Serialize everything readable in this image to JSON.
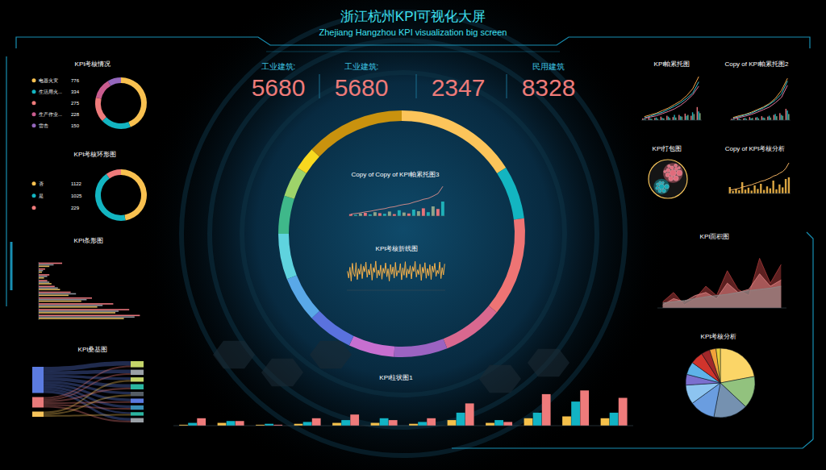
{
  "header": {
    "title": "浙江杭州KPI可视化大屏",
    "subtitle": "Zhejiang Hangzhou KPI visualization big screen"
  },
  "kpis": [
    {
      "label": "工业建筑:",
      "value": 5680
    },
    {
      "label": "工业建筑:",
      "value": 5680
    },
    {
      "value": 2347
    },
    {
      "label": "民用建筑",
      "value": 8328
    }
  ],
  "chart_data": [
    {
      "type": "donut",
      "title": "KPI考核情况",
      "categories": [
        "电器火灾",
        "生活用火...",
        null,
        "生产作业...",
        "雷击"
      ],
      "values": [
        776,
        334,
        275,
        228,
        150
      ],
      "colors": [
        "#f9c150",
        "#13b5c1",
        "#ef7b7b",
        "#c95c8f",
        "#9467bd"
      ],
      "legend": "left"
    },
    {
      "type": "donut",
      "title": "KPI考核环形图",
      "categories": [
        "否",
        "是",
        null
      ],
      "values": [
        1122,
        1025,
        229
      ],
      "colors": [
        "#f9c150",
        "#13b5c1",
        "#ef7b7b"
      ],
      "legend": "left"
    },
    {
      "type": "bar",
      "title": "KPI条形图",
      "orientation": "horizontal",
      "xlim": [
        0,
        100
      ],
      "tick_labels": false,
      "series": [
        {
          "color": "#e5737a",
          "values": [
            22,
            6,
            10,
            8,
            15,
            30,
            50,
            70,
            85,
            95
          ]
        },
        {
          "color": "#8a9099",
          "values": [
            14,
            4,
            8,
            10,
            18,
            35,
            45,
            60,
            75,
            90
          ]
        },
        {
          "color": "#d9b25a",
          "values": [
            10,
            3,
            5,
            12,
            20,
            28,
            40,
            55,
            72,
            80
          ]
        }
      ]
    },
    {
      "type": "sankey",
      "title": "KPI桑基图",
      "colors": [
        "#5b7be0",
        "#e87a7a",
        "#f5c35a",
        "#c5d56a",
        "#9aa0a6",
        "#c5d56a",
        "#2bb5a0",
        "#555d66",
        "#5b7be0",
        "#3a8fb7",
        "#2bb5a0",
        "#9aa0a6"
      ],
      "links": [
        {
          "source": 0,
          "target": 3,
          "value": 5
        },
        {
          "source": 0,
          "target": 4,
          "value": 4
        },
        {
          "source": 0,
          "target": 5,
          "value": 3
        },
        {
          "source": 0,
          "target": 6,
          "value": 4
        },
        {
          "source": 0,
          "target": 7,
          "value": 3
        },
        {
          "source": 0,
          "target": 8,
          "value": 3
        },
        {
          "source": 0,
          "target": 9,
          "value": 3
        },
        {
          "source": 0,
          "target": 10,
          "value": 2
        },
        {
          "source": 0,
          "target": 11,
          "value": 3
        },
        {
          "source": 1,
          "target": 3,
          "value": 2
        },
        {
          "source": 1,
          "target": 4,
          "value": 2
        },
        {
          "source": 1,
          "target": 6,
          "value": 2
        },
        {
          "source": 1,
          "target": 8,
          "value": 2
        },
        {
          "source": 1,
          "target": 9,
          "value": 2
        },
        {
          "source": 1,
          "target": 11,
          "value": 2
        },
        {
          "source": 2,
          "target": 5,
          "value": 2
        },
        {
          "source": 2,
          "target": 7,
          "value": 2
        },
        {
          "source": 2,
          "target": 10,
          "value": 2
        }
      ]
    },
    {
      "type": "donut",
      "values": [
        16,
        7,
        13,
        8,
        7,
        6,
        6,
        6,
        6,
        5,
        4,
        3,
        13
      ],
      "colors": [
        "#fcc45a",
        "#13b5c1",
        "#ee7474",
        "#d9688f",
        "#9b63c2",
        "#c76fd0",
        "#5a72de",
        "#59a8e8",
        "#5fd3de",
        "#3fb88a",
        "#9ed36a",
        "#f8d81f",
        "#c9920e"
      ]
    },
    {
      "type": "combo",
      "title": "Copy of Copy of KPI帕累托图3",
      "ylim": [
        0,
        100
      ],
      "tick_labels": false,
      "series": [
        {
          "type": "bar",
          "colors": [
            "#e5737a",
            "#1fb0b8",
            "#8fa58a",
            "#e5737a",
            "#1fb0b8",
            "#8fa58a",
            "#e5737a",
            "#1fb0b8",
            "#8fa58a",
            "#e5737a",
            "#1fb0b8",
            "#8fa58a",
            "#e5737a",
            "#1fb0b8",
            "#8fa58a",
            "#e5737a",
            "#1fb0b8",
            "#8fa58a",
            "#e5737a",
            "#1fb0b8"
          ],
          "values": [
            6,
            4,
            8,
            10,
            5,
            12,
            9,
            7,
            14,
            6,
            18,
            11,
            8,
            20,
            15,
            24,
            12,
            30,
            22,
            45
          ]
        },
        {
          "type": "line",
          "color": "#c98888",
          "values": [
            6,
            8,
            10,
            13,
            15,
            18,
            21,
            23,
            27,
            29,
            33,
            36,
            38,
            43,
            47,
            52,
            55,
            62,
            70,
            92
          ]
        }
      ]
    },
    {
      "type": "line",
      "title": "KPI考核折线图",
      "ylim": [
        0,
        100
      ],
      "tick_labels": false,
      "series": [
        {
          "color": "#f5b04a",
          "values": [
            62,
            40,
            75,
            30,
            88,
            55,
            45,
            90,
            35,
            70,
            52,
            85,
            38,
            78,
            60,
            92,
            42,
            68,
            50,
            86,
            33,
            74,
            58,
            95,
            40,
            66,
            48,
            82,
            36,
            72,
            55,
            89,
            44,
            70,
            30,
            84,
            52,
            76,
            40,
            91,
            46,
            64,
            57,
            87,
            34,
            73,
            49,
            93,
            41,
            69,
            53,
            80,
            37,
            77,
            61,
            94,
            43,
            67,
            51,
            85,
            32,
            75,
            56,
            90,
            39,
            71,
            47,
            83,
            35,
            79,
            59,
            88,
            45,
            65,
            54,
            92,
            38,
            74,
            50,
            86
          ]
        }
      ]
    },
    {
      "type": "bar",
      "title": "KPI柱状图1",
      "ylim": [
        0,
        40
      ],
      "tick_labels": false,
      "series": [
        {
          "color": "#f5c04a",
          "values": [
            1,
            3,
            1,
            2,
            3,
            3,
            2,
            6,
            3,
            8,
            10,
            8
          ]
        },
        {
          "color": "#12b3c4",
          "values": [
            3,
            5,
            2,
            4,
            6,
            8,
            4,
            14,
            6,
            14,
            26,
            14
          ]
        },
        {
          "color": "#ef7b7b",
          "values": [
            8,
            5,
            1,
            8,
            12,
            6,
            8,
            24,
            4,
            34,
            38,
            30
          ]
        }
      ]
    },
    {
      "type": "combo",
      "title": "KPI帕累托图",
      "ylim": [
        0,
        100
      ],
      "tick_labels": false,
      "series": [
        {
          "type": "bar",
          "color": "#e5737a",
          "values": [
            4,
            6,
            5,
            8,
            10,
            7,
            12,
            15,
            10,
            30
          ]
        },
        {
          "type": "bar",
          "color": "#1fb0b8",
          "values": [
            3,
            4,
            6,
            5,
            8,
            12,
            9,
            10,
            18,
            20
          ]
        },
        {
          "type": "bar",
          "color": "#7aa37a",
          "values": [
            2,
            3,
            3,
            4,
            5,
            6,
            8,
            12,
            14,
            16
          ]
        },
        {
          "type": "line",
          "color": "#f5a54a",
          "values": [
            8,
            12,
            16,
            22,
            28,
            36,
            44,
            56,
            72,
            100
          ]
        },
        {
          "type": "line",
          "color": "#3cc9d6",
          "values": [
            5,
            9,
            14,
            18,
            25,
            32,
            40,
            50,
            62,
            88
          ]
        },
        {
          "type": "line",
          "color": "#e07aa0",
          "values": [
            4,
            7,
            10,
            15,
            20,
            26,
            34,
            45,
            58,
            78
          ]
        }
      ]
    },
    {
      "type": "combo",
      "title": "Copy of KPI帕累托图2",
      "ylim": [
        0,
        100
      ],
      "tick_labels": false,
      "series": [
        {
          "type": "bar",
          "color": "#e5737a",
          "values": [
            3,
            5,
            4,
            7,
            6,
            9,
            8,
            12,
            16,
            26
          ]
        },
        {
          "type": "bar",
          "color": "#1fb0b8",
          "values": [
            2,
            4,
            5,
            4,
            7,
            6,
            10,
            14,
            12,
            22
          ]
        },
        {
          "type": "bar",
          "color": "#7aa37a",
          "values": [
            1,
            2,
            3,
            5,
            4,
            5,
            6,
            9,
            10,
            14
          ]
        },
        {
          "type": "line",
          "color": "#f5a54a",
          "values": [
            6,
            10,
            13,
            18,
            24,
            30,
            38,
            50,
            68,
            96
          ]
        },
        {
          "type": "line",
          "color": "#3cc9d6",
          "values": [
            4,
            8,
            12,
            16,
            22,
            28,
            36,
            46,
            60,
            90
          ]
        },
        {
          "type": "line",
          "color": "#e07aa0",
          "values": [
            3,
            6,
            9,
            13,
            18,
            24,
            30,
            40,
            52,
            80
          ]
        }
      ]
    },
    {
      "type": "pack",
      "title": "KPI打包图",
      "color": "#f5c35a",
      "groups": [
        {
          "color": "#e06c7c",
          "values": [
            30,
            22,
            18,
            15,
            12,
            10,
            9,
            8,
            7,
            6,
            5,
            4
          ]
        },
        {
          "color": "#15a9b5",
          "values": [
            20,
            14,
            10,
            8,
            7,
            6,
            5,
            4
          ]
        }
      ]
    },
    {
      "type": "combo",
      "title": "Copy of KPI考核分析",
      "ylim": [
        0,
        100
      ],
      "tick_labels": false,
      "series": [
        {
          "type": "bar",
          "color": "#d9a441",
          "values": [
            20,
            8,
            15,
            10,
            35,
            12,
            18,
            9,
            25,
            14,
            30,
            11,
            22,
            16,
            40,
            13,
            28,
            19,
            45,
            50
          ]
        },
        {
          "type": "line",
          "color": "#f0b060",
          "values": [
            10,
            12,
            14,
            16,
            20,
            22,
            25,
            27,
            31,
            34,
            38,
            40,
            44,
            48,
            54,
            57,
            63,
            68,
            78,
            95
          ]
        }
      ]
    },
    {
      "type": "area",
      "title": "KPI面积图",
      "ylim": [
        0,
        100
      ],
      "tick_labels": false,
      "series": [
        {
          "color": "#a83a3a",
          "values": [
            10,
            25,
            5,
            15,
            35,
            20,
            60,
            30,
            20,
            80,
            40,
            70
          ]
        },
        {
          "color": "#e38585",
          "values": [
            5,
            15,
            10,
            20,
            25,
            15,
            40,
            25,
            30,
            55,
            35,
            45
          ]
        },
        {
          "color": "#8a8a8a",
          "values": [
            8,
            10,
            12,
            15,
            18,
            20,
            22,
            25,
            28,
            30,
            32,
            35
          ]
        }
      ]
    },
    {
      "type": "pie",
      "title": "KPI考核分析",
      "values": [
        22,
        15,
        16,
        12,
        9,
        5,
        6,
        6,
        4,
        3,
        2
      ],
      "colors": [
        "#fbd567",
        "#92c27e",
        "#7591b0",
        "#6a9de0",
        "#8dc4f0",
        "#7b6fcf",
        "#5fb2e8",
        "#d0342c",
        "#a0282a",
        "#f2a23a",
        "#e8d03a"
      ]
    }
  ]
}
